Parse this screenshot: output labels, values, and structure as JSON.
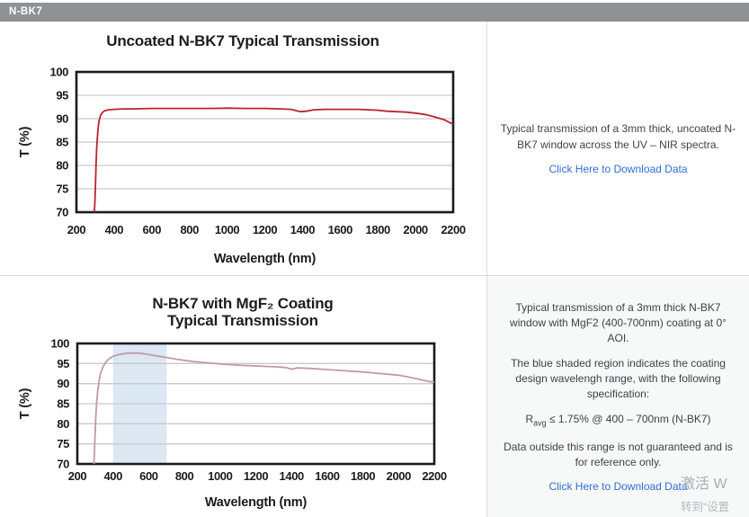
{
  "header": {
    "title": "N-BK7"
  },
  "chart_data": [
    {
      "type": "line",
      "title_lines": [
        "Uncoated N-BK7 Typical Transmission"
      ],
      "xlabel": "Wavelength (nm)",
      "ylabel": "T (%)",
      "xlim": [
        200,
        2200
      ],
      "ylim": [
        70,
        100
      ],
      "xticks": [
        200,
        400,
        600,
        800,
        1000,
        1200,
        1400,
        1600,
        1800,
        2000,
        2200
      ],
      "yticks": [
        70,
        75,
        80,
        85,
        90,
        95,
        100
      ],
      "grid": "horizontal",
      "legend": "none",
      "series": [
        {
          "name": "Uncoated N-BK7 transmission",
          "color": "#b8252c",
          "points": [
            [
              295,
              70
            ],
            [
              298,
              72
            ],
            [
              301,
              76
            ],
            [
              304,
              80
            ],
            [
              308,
              84
            ],
            [
              313,
              87
            ],
            [
              319,
              89.3
            ],
            [
              327,
              90.6
            ],
            [
              337,
              91.3
            ],
            [
              350,
              91.7
            ],
            [
              370,
              91.9
            ],
            [
              400,
              92.0
            ],
            [
              450,
              92.1
            ],
            [
              500,
              92.1
            ],
            [
              600,
              92.2
            ],
            [
              700,
              92.2
            ],
            [
              800,
              92.2
            ],
            [
              900,
              92.2
            ],
            [
              1000,
              92.25
            ],
            [
              1100,
              92.2
            ],
            [
              1200,
              92.2
            ],
            [
              1280,
              92.1
            ],
            [
              1340,
              92.0
            ],
            [
              1390,
              91.5
            ],
            [
              1420,
              91.6
            ],
            [
              1460,
              91.9
            ],
            [
              1520,
              92.0
            ],
            [
              1600,
              92.0
            ],
            [
              1700,
              92.0
            ],
            [
              1750,
              91.9
            ],
            [
              1800,
              91.8
            ],
            [
              1850,
              91.6
            ],
            [
              1900,
              91.5
            ],
            [
              1950,
              91.4
            ],
            [
              2000,
              91.2
            ],
            [
              2050,
              90.9
            ],
            [
              2100,
              90.4
            ],
            [
              2150,
              89.8
            ],
            [
              2200,
              88.8
            ]
          ]
        }
      ]
    },
    {
      "type": "line",
      "title_lines": [
        "N-BK7 with MgF₂ Coating",
        "Typical Transmission"
      ],
      "xlabel": "Wavelength (nm)",
      "ylabel": "T (%)",
      "xlim": [
        200,
        2200
      ],
      "ylim": [
        70,
        100
      ],
      "xticks": [
        200,
        400,
        600,
        800,
        1000,
        1200,
        1400,
        1600,
        1800,
        2000,
        2200
      ],
      "yticks": [
        70,
        75,
        80,
        85,
        90,
        95,
        100
      ],
      "grid": "horizontal",
      "legend": "none",
      "band": {
        "x": [
          400,
          700
        ],
        "color": "#dce8f4",
        "label": "coating design wavelength range"
      },
      "series": [
        {
          "name": "N-BK7 with MgF2 coating transmission",
          "color": "#c09ba4",
          "points": [
            [
              293,
              70
            ],
            [
              296,
              73
            ],
            [
              299,
              77
            ],
            [
              303,
              81
            ],
            [
              308,
              85
            ],
            [
              314,
              88
            ],
            [
              321,
              90.5
            ],
            [
              330,
              92.5
            ],
            [
              342,
              94
            ],
            [
              358,
              95.3
            ],
            [
              378,
              96.2
            ],
            [
              400,
              96.8
            ],
            [
              430,
              97.2
            ],
            [
              465,
              97.5
            ],
            [
              500,
              97.6
            ],
            [
              540,
              97.6
            ],
            [
              580,
              97.4
            ],
            [
              620,
              97.1
            ],
            [
              660,
              96.8
            ],
            [
              700,
              96.5
            ],
            [
              750,
              96.1
            ],
            [
              800,
              95.8
            ],
            [
              850,
              95.5
            ],
            [
              900,
              95.3
            ],
            [
              950,
              95.1
            ],
            [
              1000,
              94.9
            ],
            [
              1100,
              94.6
            ],
            [
              1200,
              94.4
            ],
            [
              1300,
              94.2
            ],
            [
              1370,
              94.0
            ],
            [
              1400,
              93.6
            ],
            [
              1430,
              93.9
            ],
            [
              1500,
              93.8
            ],
            [
              1600,
              93.5
            ],
            [
              1700,
              93.2
            ],
            [
              1800,
              92.9
            ],
            [
              1900,
              92.5
            ],
            [
              2000,
              92.1
            ],
            [
              2050,
              91.7
            ],
            [
              2100,
              91.2
            ],
            [
              2150,
              90.7
            ],
            [
              2200,
              90.3
            ]
          ]
        }
      ]
    }
  ],
  "panels": [
    {
      "paragraphs": [
        "Typical transmission of a 3mm thick, uncoated N-BK7 window across the UV – NIR spectra."
      ],
      "link_label": "Click Here to Download Data"
    },
    {
      "paragraphs": [
        "Typical transmission of a 3mm thick N-BK7 window with MgF2 (400-700nm) coating at 0° AOI.",
        "The blue shaded region indicates the coating design wavelengh range, with the following specification:",
        "Data outside this range is not guaranteed and is for reference only."
      ],
      "spec": {
        "prefix": "R",
        "sub": "avg",
        "rest": " ≤ 1.75% @ 400 – 700nm (N-BK7)"
      },
      "link_label": "Click Here to Download Data"
    }
  ],
  "watermark": {
    "line1": "激活 W",
    "line2": "转到“设置"
  },
  "colors": {
    "header_bg": "#8f9295",
    "curve_uncoated": "#b8252c",
    "curve_coated": "#c09ba4",
    "band_blue": "#dce8f4",
    "link_blue": "#2f6fd6",
    "gridline": "#c9cacb"
  }
}
